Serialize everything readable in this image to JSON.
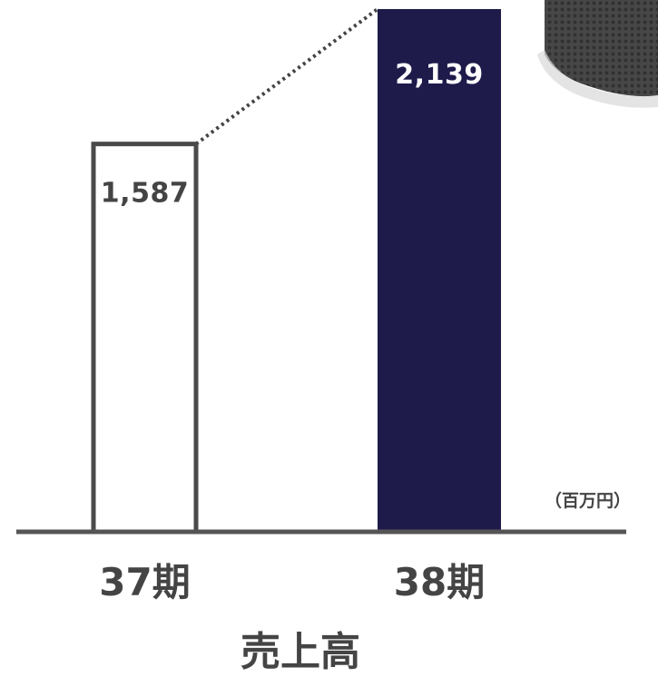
{
  "chart_data": {
    "type": "bar",
    "categories": [
      "37期",
      "38期"
    ],
    "values": [
      1587,
      2139
    ],
    "value_labels": [
      "1,587",
      "2,139"
    ],
    "caption": "売上高",
    "unit": "（百万円）",
    "ylim": [
      0,
      2200
    ],
    "grid": false,
    "colors": {
      "bar_37": "#ffffff",
      "bar_37_border": "#4a4a4a",
      "bar_38": "#1e1b4b",
      "axis": "#555555",
      "connector": "#444444",
      "label_dark": "#444444",
      "label_light": "#ffffff"
    }
  }
}
